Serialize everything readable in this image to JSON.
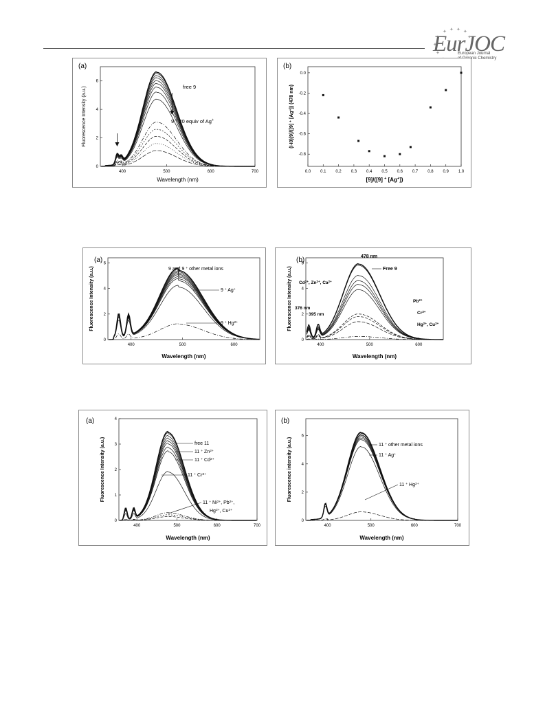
{
  "header": {
    "logo_main": "EurJOC",
    "logo_sub_1": "European Journal",
    "logo_sub_2": "of Organic Chemistry"
  },
  "chart_data": [
    {
      "id": "p1a",
      "type": "line",
      "panel_label": "(a)",
      "xlabel": "Wavelength (nm)",
      "ylabel": "Fluorescence Intensity (a.u.)",
      "xlim": [
        350,
        700
      ],
      "ylim": [
        0,
        7
      ],
      "xticks": [
        400,
        500,
        600,
        700
      ],
      "yticks": [
        0,
        2,
        4,
        6
      ],
      "xtick_labels": [
        "400",
        "500",
        "600",
        "700"
      ],
      "ytick_labels": [
        "0",
        "2",
        "4",
        "6"
      ],
      "peak_x": 478,
      "series_peaks": [
        6.6,
        6.5,
        6.35,
        6.2,
        6.0,
        5.8,
        5.55,
        5.2,
        4.7,
        3.1,
        2.6,
        2.1,
        1.6,
        1.1
      ],
      "annotations": [
        "free 9",
        "9 + 20 equiv of Ag+"
      ]
    },
    {
      "id": "p1b",
      "type": "scatter",
      "panel_label": "(b)",
      "xlabel": "[9]/([9] + [Ag+])",
      "ylabel": "(I-I0)[9]/([9] + [Ag+]) (478 nm)",
      "xlim": [
        0,
        1
      ],
      "ylim": [
        -0.92,
        0.06
      ],
      "xticks": [
        0,
        0.1,
        0.2,
        0.3,
        0.4,
        0.5,
        0.6,
        0.7,
        0.8,
        0.9,
        1.0
      ],
      "xtick_labels": [
        "0.0",
        "0.1",
        "0.2",
        "0.3",
        "0.4",
        "0.5",
        "0.6",
        "0.7",
        "0.8",
        "0.9",
        "1.0"
      ],
      "yticks": [
        -0.8,
        -0.6,
        -0.4,
        -0.2,
        0.0
      ],
      "ytick_labels": [
        "-0.8",
        "-0.6",
        "-0.4",
        "-0.2",
        "0.0"
      ],
      "x": [
        0.1,
        0.2,
        0.33,
        0.4,
        0.5,
        0.6,
        0.67,
        0.8,
        0.9,
        1.0
      ],
      "y": [
        -0.22,
        -0.44,
        -0.67,
        -0.77,
        -0.82,
        -0.8,
        -0.73,
        -0.34,
        -0.17,
        0.0
      ]
    },
    {
      "id": "p2a",
      "type": "line",
      "panel_label": "(a)",
      "xlabel": "Wavelength (nm)",
      "ylabel": "Fluorescence Intensity (a.u.)",
      "xlim": [
        355,
        650
      ],
      "ylim": [
        0,
        6.4
      ],
      "xticks": [
        400,
        500,
        600
      ],
      "yticks": [
        0,
        2,
        4,
        6
      ],
      "xtick_labels": [
        "400",
        "500",
        "600"
      ],
      "ytick_labels": [
        "0",
        "2",
        "4",
        "6"
      ],
      "peak_x": 492,
      "series_peaks": [
        5.4,
        5.3,
        5.2,
        5.1,
        5.0,
        4.9,
        4.75,
        4.6,
        4.1,
        1.2
      ],
      "annotations": [
        "9 and 9 + other metal ions",
        "9 + Ag+",
        "9 + Hg2+"
      ]
    },
    {
      "id": "p2b",
      "type": "line",
      "panel_label": "(b)",
      "xlabel": "Wavelength (nm)",
      "ylabel": "Fluorescence Intensity (a.u.)",
      "xlim": [
        370,
        650
      ],
      "ylim": [
        0,
        6.4
      ],
      "xticks": [
        400,
        500,
        600
      ],
      "yticks": [
        0,
        2,
        4,
        6
      ],
      "xtick_labels": [
        "400",
        "500",
        "600"
      ],
      "ytick_labels": [
        "0",
        "2",
        "4",
        "6"
      ],
      "peak_x": 478,
      "series_peaks": [
        5.9,
        5.8,
        5.0,
        4.6,
        4.3,
        3.9,
        2.0,
        1.8,
        1.4,
        0.25
      ],
      "annotations": [
        "478 nm",
        "Free 9",
        "Cd2+, Zn2+, Ca2+",
        "376 nm",
        "395 nm",
        "Pb2+",
        "Cr3+",
        "Hg2+, Cu2+"
      ]
    },
    {
      "id": "p3a",
      "type": "line",
      "panel_label": "(a)",
      "xlabel": "Wavelength (nm)",
      "ylabel": "Fluorescence Intensity (a.u.)",
      "xlim": [
        355,
        700
      ],
      "ylim": [
        0,
        4
      ],
      "xticks": [
        400,
        500,
        600,
        700
      ],
      "yticks": [
        0,
        1,
        2,
        3,
        4
      ],
      "xtick_labels": [
        "400",
        "500",
        "600",
        "700"
      ],
      "ytick_labels": [
        "0",
        "1",
        "2",
        "3",
        "4"
      ],
      "peak_x": 478,
      "series_peaks": [
        3.45,
        3.4,
        3.3,
        3.2,
        3.1,
        3.0,
        2.85,
        2.7,
        1.9,
        0.3,
        0.22,
        0.15
      ],
      "annotations": [
        "free 11",
        "11 + Zn2+",
        "11 + Cd2+",
        "11 + Cr3+",
        "11 + Ni2+, Pb2+,",
        "Hg2+, Cu2+"
      ]
    },
    {
      "id": "p3b",
      "type": "line",
      "panel_label": "(b)",
      "xlabel": "Wavelength (nm)",
      "ylabel": "Fluorescence intensity (a.u.)",
      "xlim": [
        350,
        700
      ],
      "ylim": [
        0,
        7.2
      ],
      "xticks": [
        400,
        500,
        600,
        700
      ],
      "yticks": [
        0,
        2,
        4,
        6
      ],
      "xtick_labels": [
        "400",
        "500",
        "600",
        "700"
      ],
      "ytick_labels": [
        "0",
        "2",
        "4",
        "6"
      ],
      "peak_x": 478,
      "series_peaks": [
        6.2,
        6.15,
        6.05,
        6.0,
        5.9,
        5.8,
        5.7,
        5.2,
        0.6
      ],
      "annotations": [
        "11 + other metal ions",
        "11 + Ag+",
        "11 + Hg2+"
      ]
    }
  ]
}
